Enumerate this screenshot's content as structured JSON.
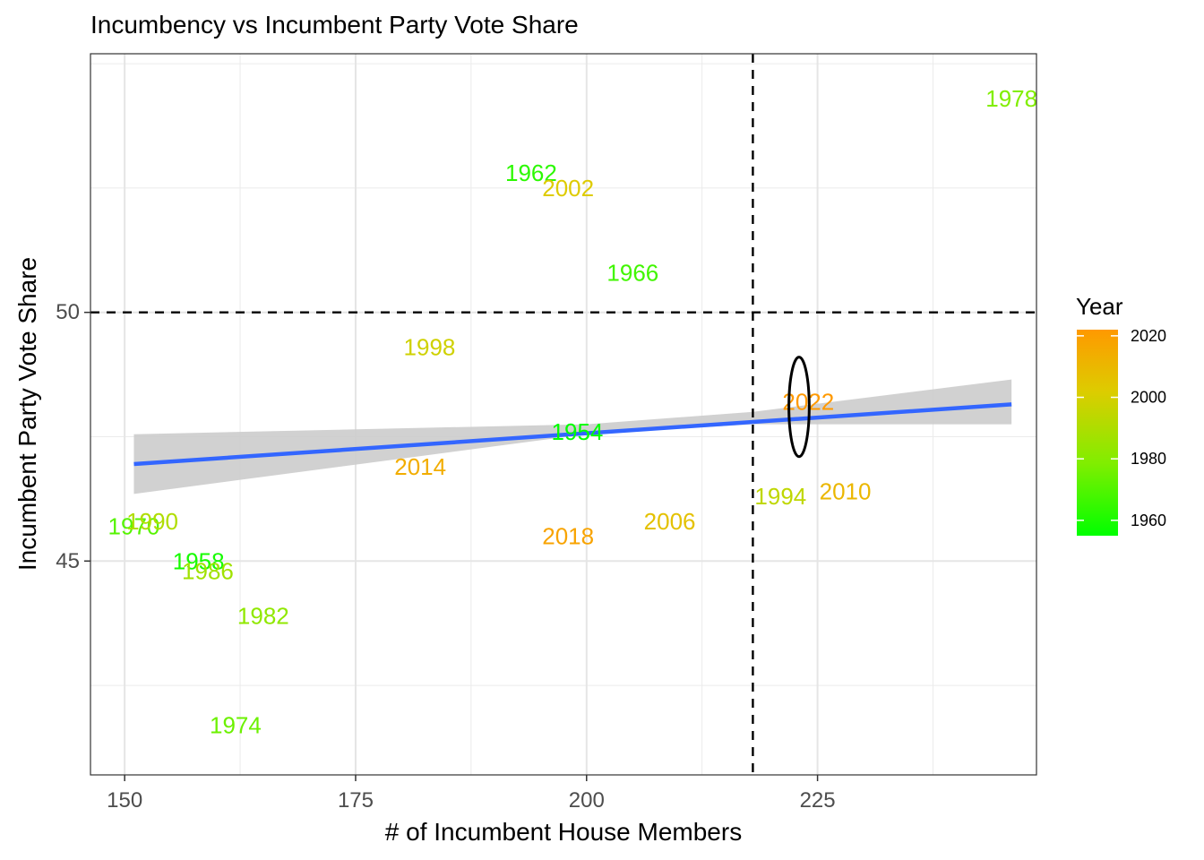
{
  "chart_data": {
    "type": "scatter",
    "title": "Incumbency vs Incumbent Party Vote Share",
    "xlabel": "# of Incumbent House Members",
    "ylabel": "Incumbent Party Vote Share",
    "xlim": [
      146.3,
      248.7
    ],
    "ylim": [
      40.7,
      55.2
    ],
    "x_ticks": [
      150,
      175,
      200,
      225
    ],
    "y_ticks": [
      45,
      50
    ],
    "grid": true,
    "points": [
      {
        "year": "1954",
        "x": 199,
        "y": 47.6
      },
      {
        "year": "1958",
        "x": 158,
        "y": 45.0
      },
      {
        "year": "1962",
        "x": 194,
        "y": 52.8
      },
      {
        "year": "1966",
        "x": 205,
        "y": 50.8
      },
      {
        "year": "1970",
        "x": 151,
        "y": 45.7
      },
      {
        "year": "1974",
        "x": 162,
        "y": 41.7
      },
      {
        "year": "1978",
        "x": 246,
        "y": 54.3
      },
      {
        "year": "1982",
        "x": 165,
        "y": 43.9
      },
      {
        "year": "1986",
        "x": 159,
        "y": 44.8
      },
      {
        "year": "1990",
        "x": 153,
        "y": 45.8
      },
      {
        "year": "1994",
        "x": 221,
        "y": 46.3
      },
      {
        "year": "1998",
        "x": 183,
        "y": 49.3
      },
      {
        "year": "2002",
        "x": 198,
        "y": 52.5
      },
      {
        "year": "2006",
        "x": 209,
        "y": 45.8
      },
      {
        "year": "2010",
        "x": 228,
        "y": 46.4
      },
      {
        "year": "2014",
        "x": 182,
        "y": 46.9
      },
      {
        "year": "2018",
        "x": 198,
        "y": 45.5
      },
      {
        "year": "2022",
        "x": 224,
        "y": 48.2
      }
    ],
    "trend_line": {
      "x_start": 151,
      "y_start": 46.95,
      "x_end": 246,
      "y_end": 48.15,
      "color": "#3366ff"
    },
    "confidence_band": {
      "upper": [
        [
          151,
          47.55
        ],
        [
          200,
          47.75
        ],
        [
          218,
          48.0
        ],
        [
          246,
          48.65
        ]
      ],
      "lower": [
        [
          151,
          46.35
        ],
        [
          200,
          47.55
        ],
        [
          218,
          47.75
        ],
        [
          246,
          47.75
        ]
      ],
      "color": "#cccccc"
    },
    "reference_lines": {
      "vertical_x": 218,
      "horizontal_y": 50
    },
    "highlight_ellipse": {
      "x": 223,
      "y": 48.1,
      "rx": 1.1,
      "ry": 1.0
    },
    "color_scale": {
      "title": "Year",
      "min_year": 1954,
      "max_year": 2022,
      "stops": [
        "#00ff00",
        "#80ee00",
        "#ddcc00",
        "#ff9900"
      ],
      "ticks": [
        "1960",
        "1980",
        "2000",
        "2020"
      ]
    },
    "legend_placement": "right"
  }
}
